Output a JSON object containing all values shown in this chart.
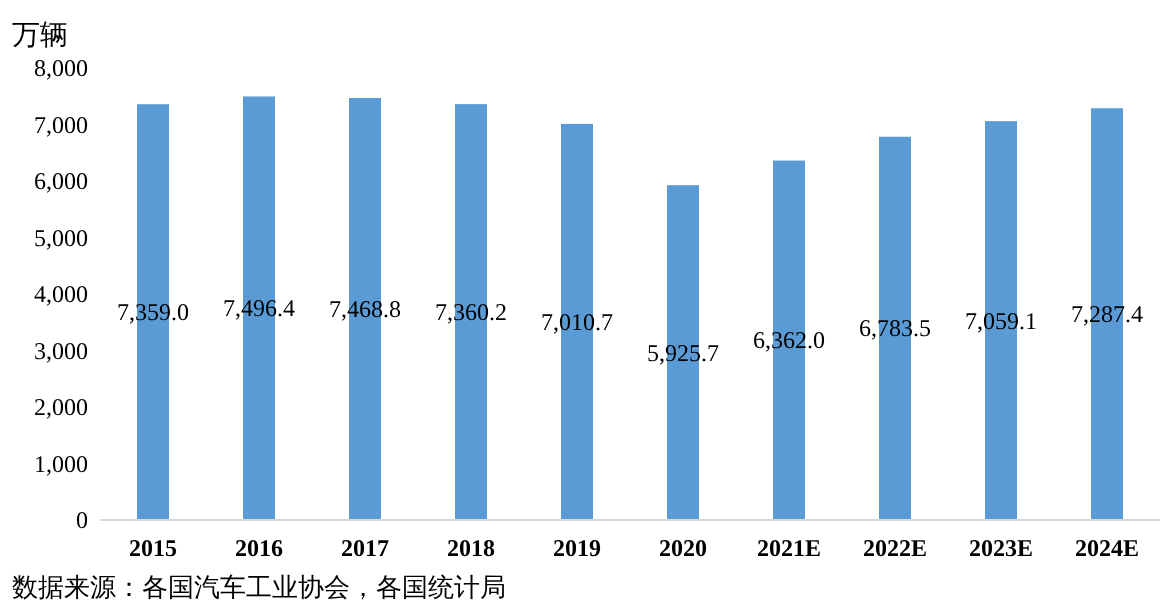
{
  "chart_data": {
    "type": "bar",
    "ylabel": "万辆",
    "categories": [
      "2015",
      "2016",
      "2017",
      "2018",
      "2019",
      "2020",
      "2021E",
      "2022E",
      "2023E",
      "2024E"
    ],
    "values": [
      7359.0,
      7496.4,
      7468.8,
      7360.2,
      7010.7,
      5925.7,
      6362.0,
      6783.5,
      7059.1,
      7287.4
    ],
    "value_labels": [
      "7,359.0",
      "7,496.4",
      "7,468.8",
      "7,360.2",
      "7,010.7",
      "5,925.7",
      "6,362.0",
      "6,783.5",
      "7,059.1",
      "7,287.4"
    ],
    "color": "#5b9bd5",
    "ylim": [
      0,
      8000
    ],
    "yticks": [
      {
        "value": 0,
        "label": "0"
      },
      {
        "value": 1000,
        "label": "1,000"
      },
      {
        "value": 2000,
        "label": "2,000"
      },
      {
        "value": 3000,
        "label": "3,000"
      },
      {
        "value": 4000,
        "label": "4,000"
      },
      {
        "value": 5000,
        "label": "5,000"
      },
      {
        "value": 6000,
        "label": "6,000"
      },
      {
        "value": 7000,
        "label": "7,000"
      },
      {
        "value": 8000,
        "label": "8,000"
      }
    ],
    "grid": false,
    "annotations": [
      "数据来源：各国汽车工业协会，各国统计局"
    ]
  }
}
